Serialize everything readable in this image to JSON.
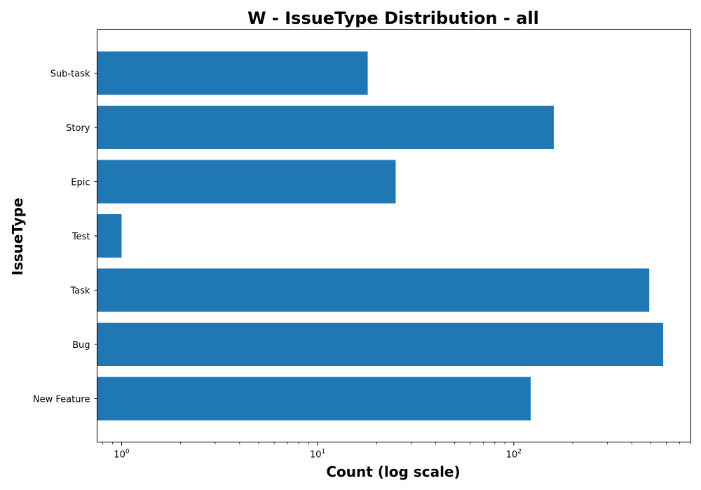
{
  "chart_data": {
    "type": "bar",
    "orientation": "horizontal",
    "title": "W - IssueType Distribution - all",
    "xlabel": "Count (log scale)",
    "ylabel": "IssueType",
    "x_scale": "log",
    "xlim": [
      0.75,
      800
    ],
    "x_ticks": [
      1,
      10,
      100
    ],
    "x_tick_labels": [
      {
        "base": "10",
        "exp": "0"
      },
      {
        "base": "10",
        "exp": "1"
      },
      {
        "base": "10",
        "exp": "2"
      }
    ],
    "categories": [
      "New Feature",
      "Bug",
      "Task",
      "Test",
      "Epic",
      "Story",
      "Sub-task"
    ],
    "values": [
      122,
      578,
      491,
      1,
      25,
      160,
      18
    ],
    "grid": false,
    "legend": "none",
    "colors": {
      "bar": "#1f77b4",
      "axis": "#000000",
      "background": "#ffffff"
    }
  }
}
